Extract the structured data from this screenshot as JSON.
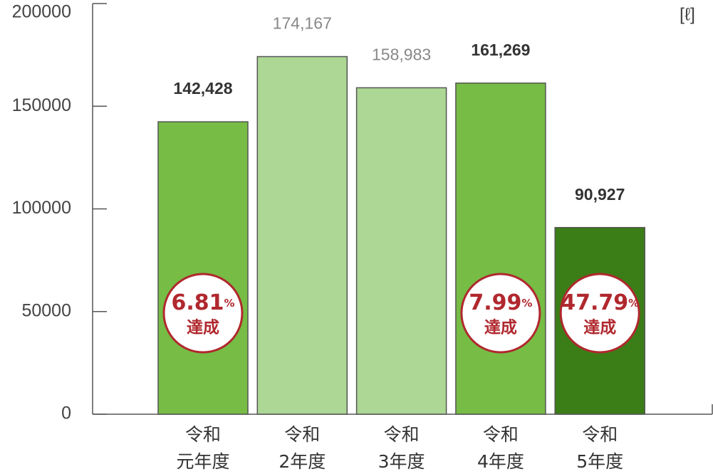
{
  "chart_data": {
    "type": "bar",
    "unit_label": "[ℓ]",
    "categories": [
      [
        "令和",
        "元年度"
      ],
      [
        "令和",
        "2年度"
      ],
      [
        "令和",
        "3年度"
      ],
      [
        "令和",
        "4年度"
      ],
      [
        "令和",
        "5年度"
      ]
    ],
    "values": [
      142428,
      174167,
      158983,
      161269,
      90927
    ],
    "value_labels": [
      "142,428",
      "174,167",
      "158,983",
      "161,269",
      "90,927"
    ],
    "value_label_colors": [
      "#333333",
      "#888888",
      "#888888",
      "#333333",
      "#333333"
    ],
    "colors": [
      "#76bc45",
      "#acd794",
      "#acd794",
      "#76bc45",
      "#3b7d17"
    ],
    "badges": [
      {
        "value": "6.81",
        "unit": "%",
        "label": "達成"
      },
      null,
      null,
      {
        "value": "7.99",
        "unit": "%",
        "label": "達成"
      },
      {
        "value": "47.79",
        "unit": "%",
        "label": "達成"
      }
    ],
    "ylim": [
      0,
      200000
    ],
    "yticks": [
      0,
      50000,
      100000,
      150000,
      200000
    ]
  }
}
